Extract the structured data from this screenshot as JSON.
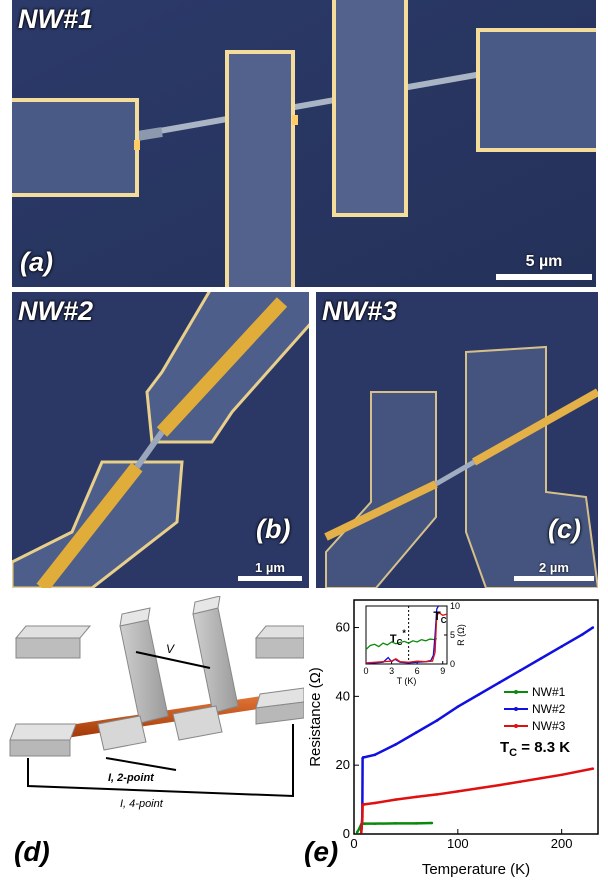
{
  "panel_a": {
    "title": "NW#1",
    "label": "(a)",
    "scale": "5 µm"
  },
  "panel_b": {
    "title": "NW#2",
    "label": "(b)",
    "scale": "1 µm"
  },
  "panel_c": {
    "title": "NW#3",
    "label": "(c)",
    "scale": "2 µm"
  },
  "panel_d": {
    "label": "(d)",
    "v_label": "V",
    "i2_label": "I, 2-point",
    "i4_label": "I, 4-point"
  },
  "panel_e": {
    "label": "(e)",
    "tc_text": "T",
    "tc_sub": "C",
    "tc_value": " = 8.3 K"
  },
  "chart_data": [
    {
      "type": "line",
      "xlabel": "Temperature (K)",
      "ylabel": "Resistance (Ω)",
      "xlim": [
        0,
        235
      ],
      "ylim": [
        0,
        68
      ],
      "xticks": [
        0,
        100,
        200
      ],
      "yticks": [
        0,
        20,
        40,
        60
      ],
      "legend": "right",
      "series": [
        {
          "name": "NW#1",
          "color": "#0a8a0a",
          "x": [
            3,
            5,
            7,
            8,
            10,
            20,
            40,
            60,
            75
          ],
          "y": [
            0.5,
            1.5,
            2.8,
            3.0,
            3.0,
            3.0,
            3.1,
            3.1,
            3.2
          ]
        },
        {
          "name": "NW#2",
          "color": "#1010e0",
          "x": [
            7,
            8,
            8.3,
            9,
            10,
            20,
            40,
            60,
            80,
            100,
            120,
            140,
            160,
            180,
            200,
            220,
            230
          ],
          "y": [
            0.5,
            5,
            22,
            22.3,
            22.3,
            23,
            26,
            29.5,
            33,
            37,
            40.5,
            44,
            47.5,
            51,
            54.5,
            58,
            60
          ]
        },
        {
          "name": "NW#3",
          "color": "#e01010",
          "x": [
            7,
            8,
            8.3,
            9,
            10,
            20,
            40,
            60,
            80,
            100,
            120,
            140,
            160,
            180,
            200,
            230
          ],
          "y": [
            0.5,
            4,
            8.5,
            8.6,
            8.6,
            9,
            10,
            10.8,
            11.5,
            12.4,
            13.3,
            14.2,
            15.2,
            16.2,
            17.2,
            19
          ]
        }
      ]
    },
    {
      "type": "line",
      "xlabel": "T (K)",
      "ylabel": "R (Ω)",
      "xlim": [
        0,
        9.5
      ],
      "ylim": [
        0,
        10
      ],
      "xticks": [
        0,
        3,
        6,
        9
      ],
      "yticks": [
        0,
        5,
        10
      ],
      "annotations": {
        "tc_label": "T",
        "tc_sub": "C",
        "tcstar_label": "T",
        "tcstar_sub": "C",
        "tcstar_sup": "*"
      },
      "series": [
        {
          "name": "NW#1",
          "color": "#0a8a0a",
          "x": [
            0,
            0.5,
            1,
            1.5,
            2,
            2.5,
            3,
            3.5,
            4,
            4.5,
            5,
            5.5,
            6,
            6.5,
            7,
            7.5,
            8,
            8.3
          ],
          "y": [
            2.5,
            3.2,
            3.4,
            3.0,
            3.6,
            3.3,
            3.8,
            3.5,
            3.7,
            3.9,
            3.6,
            4.0,
            3.8,
            4.2,
            4.0,
            4.3,
            4.2,
            4.4
          ]
        },
        {
          "name": "NW#2",
          "color": "#1010e0",
          "x": [
            0,
            1,
            2,
            2.6,
            3,
            3.4,
            4,
            5,
            6,
            7,
            7.6,
            7.9,
            8.1,
            8.3,
            8.5
          ],
          "y": [
            0.1,
            0.2,
            0.3,
            1.1,
            0.4,
            0.8,
            0.3,
            0.2,
            0.3,
            0.4,
            0.6,
            1.5,
            5,
            9.5,
            10
          ]
        },
        {
          "name": "NW#3",
          "color": "#e01010",
          "x": [
            0,
            1,
            2,
            3,
            3.5,
            4,
            5,
            6,
            7,
            7.8,
            8.1,
            8.3,
            8.6,
            9,
            9.5
          ],
          "y": [
            0.2,
            0.3,
            0.4,
            0.5,
            0.9,
            0.4,
            0.3,
            0.5,
            0.4,
            0.5,
            2,
            8.5,
            8.8,
            8.4,
            8.6
          ]
        }
      ]
    }
  ]
}
